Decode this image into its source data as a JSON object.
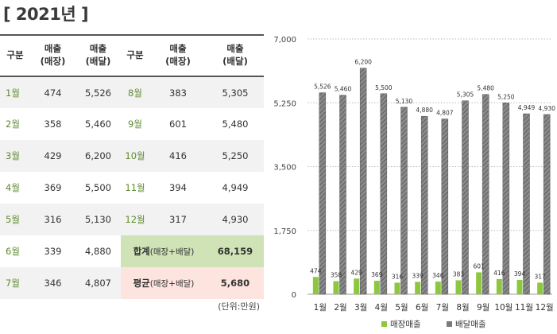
{
  "page_title": "[ 2021년 ]",
  "table": {
    "headers": {
      "category": "구분",
      "store": [
        "매출",
        "(매장)"
      ],
      "delivery": [
        "매출",
        "(배달)"
      ]
    },
    "rows": [
      {
        "m1": "1월",
        "s1": "474",
        "d1": "5,526",
        "m2": "8월",
        "s2": "383",
        "d2": "5,305"
      },
      {
        "m1": "2월",
        "s1": "358",
        "d1": "5,460",
        "m2": "9월",
        "s2": "601",
        "d2": "5,480"
      },
      {
        "m1": "3월",
        "s1": "429",
        "d1": "6,200",
        "m2": "10월",
        "s2": "416",
        "d2": "5,250"
      },
      {
        "m1": "4월",
        "s1": "369",
        "d1": "5,500",
        "m2": "11월",
        "s2": "394",
        "d2": "4,949"
      },
      {
        "m1": "5월",
        "s1": "316",
        "d1": "5,130",
        "m2": "12월",
        "s2": "317",
        "d2": "4,930"
      }
    ],
    "row6": {
      "m1": "6월",
      "s1": "339",
      "d1": "4,880",
      "label": "합계",
      "label_sub": "(매장+배달)",
      "value": "68,159"
    },
    "row7": {
      "m1": "7월",
      "s1": "346",
      "d1": "4,807",
      "label": "평균",
      "label_sub": "(매장+배달)",
      "value": "5,680"
    },
    "unit_note": "(단위:만원)"
  },
  "colors": {
    "store_bar": "#8dc63f",
    "delivery_bar": "#7a7a7a",
    "sum_bg": "#cfe3b6",
    "avg_bg": "#fde4df",
    "avg_text": "#e84a3a"
  },
  "chart_data": {
    "type": "bar",
    "categories": [
      "1월",
      "2월",
      "3월",
      "4월",
      "5월",
      "6월",
      "7월",
      "8월",
      "9월",
      "10월",
      "11월",
      "12월"
    ],
    "series": [
      {
        "name": "매장매출",
        "values": [
          474,
          358,
          429,
          369,
          316,
          339,
          346,
          383,
          601,
          416,
          394,
          317
        ]
      },
      {
        "name": "배달매출",
        "values": [
          5526,
          5460,
          6200,
          5500,
          5130,
          4880,
          4807,
          5305,
          5480,
          5250,
          4949,
          4930
        ]
      }
    ],
    "y_ticks": [
      "0",
      "1,750",
      "3,500",
      "5,250",
      "7,000"
    ],
    "ylim": [
      0,
      7000
    ],
    "grid": true,
    "legend": "bottom-center"
  }
}
